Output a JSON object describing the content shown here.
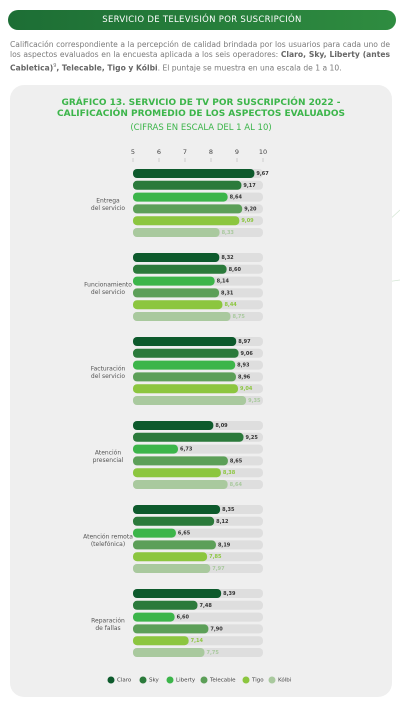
{
  "header": {
    "title": "SERVICIO DE TELEVISIÓN POR SUSCRIPCIÓN"
  },
  "intro": {
    "text_before": "Calificación correspondiente a la percepción de calidad brindada por los usuarios para cada uno de los aspectos evaluados en la encuesta aplicada a los seis operadores: ",
    "operators": "Claro, Sky, Liberty (antes Cabletica)",
    "footnote_ref": "9",
    "operators_end": ", Telecable, Tigo y Kólbi",
    "text_after": ". El puntaje se muestra en una escala de 1 a 10."
  },
  "chart_data": {
    "type": "bar",
    "orientation": "horizontal",
    "title": "GRÁFICO 13. SERVICIO DE TV POR SUSCRIPCIÓN 2022 - CALIFICACIÓN PROMEDIO DE LOS ASPECTOS EVALUADOS",
    "subtitle": "(CIFRAS EN ESCALA DEL 1 AL 10)",
    "categories": [
      "Entrega\ndel servicio",
      "Funcionamiento\ndel servicio",
      "Facturación\ndel servicio",
      "Atención\npresencial",
      "Atención remota\n(telefónica)",
      "Reparación\nde fallas"
    ],
    "xlim": [
      5,
      10
    ],
    "xticks": [
      5,
      6,
      7,
      8,
      9,
      10
    ],
    "series": [
      {
        "name": "Claro",
        "color": "#0d5a2c",
        "values": [
          9.67,
          8.32,
          8.97,
          8.09,
          8.35,
          8.39
        ],
        "value_labels": [
          "9,67",
          "8,32",
          "8,97",
          "8,09",
          "8,35",
          "8,39"
        ]
      },
      {
        "name": "Sky",
        "color": "#2b7a3b",
        "values": [
          9.17,
          8.6,
          9.06,
          9.25,
          8.12,
          7.48
        ],
        "value_labels": [
          "9,17",
          "8,60",
          "9,06",
          "9,25",
          "8,12",
          "7,48"
        ]
      },
      {
        "name": "Liberty",
        "color": "#3cb54a",
        "values": [
          8.64,
          8.14,
          8.93,
          6.73,
          6.65,
          6.6
        ],
        "value_labels": [
          "8,64",
          "8,14",
          "8,93",
          "6,73",
          "6,65",
          "6,60"
        ]
      },
      {
        "name": "Telecable",
        "color": "#5c9f58",
        "values": [
          9.2,
          8.31,
          8.96,
          8.65,
          8.19,
          7.9
        ],
        "value_labels": [
          "9,20",
          "8,31",
          "8,96",
          "8,65",
          "8,19",
          "7,90"
        ]
      },
      {
        "name": "Tigo",
        "color": "#8cc63f",
        "values": [
          9.09,
          8.44,
          9.04,
          8.38,
          7.85,
          7.14
        ],
        "value_labels": [
          "9,09",
          "8,44",
          "9,04",
          "8,38",
          "7,85",
          "7,14"
        ]
      },
      {
        "name": "Kólbi",
        "color": "#a9c99e",
        "values": [
          8.33,
          8.75,
          9.35,
          8.64,
          7.97,
          7.75
        ],
        "value_labels": [
          "8,33",
          "8,75",
          "9,35",
          "8,64",
          "7,97",
          "7,75"
        ]
      }
    ]
  }
}
